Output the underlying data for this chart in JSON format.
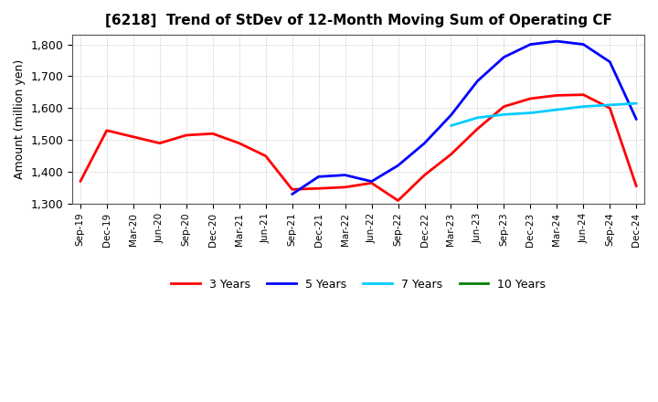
{
  "title": "[6218]  Trend of StDev of 12-Month Moving Sum of Operating CF",
  "ylabel": "Amount (million yen)",
  "background_color": "#ffffff",
  "grid_color": "#999999",
  "ylim": [
    1300,
    1830
  ],
  "yticks": [
    1300,
    1400,
    1500,
    1600,
    1700,
    1800
  ],
  "x_labels": [
    "Sep-19",
    "Dec-19",
    "Mar-20",
    "Jun-20",
    "Sep-20",
    "Dec-20",
    "Mar-21",
    "Jun-21",
    "Sep-21",
    "Dec-21",
    "Mar-22",
    "Jun-22",
    "Sep-22",
    "Dec-22",
    "Mar-23",
    "Jun-23",
    "Sep-23",
    "Dec-23",
    "Mar-24",
    "Jun-24",
    "Sep-24",
    "Dec-24"
  ],
  "series": {
    "3 Years": {
      "color": "#ff0000",
      "linewidth": 2.0,
      "data_x": [
        0,
        1,
        2,
        3,
        4,
        5,
        6,
        7,
        8,
        9,
        10,
        11,
        12,
        13,
        14,
        15,
        16,
        17,
        18,
        19,
        20,
        21
      ],
      "data_y": [
        1370,
        1530,
        1510,
        1490,
        1515,
        1520,
        1490,
        1450,
        1345,
        1348,
        1352,
        1365,
        1310,
        1390,
        1455,
        1535,
        1605,
        1630,
        1640,
        1642,
        1600,
        1355
      ]
    },
    "5 Years": {
      "color": "#0000ff",
      "linewidth": 2.0,
      "data_x": [
        8,
        9,
        10,
        11,
        12,
        13,
        14,
        15,
        16,
        17,
        18,
        19,
        20,
        21
      ],
      "data_y": [
        1330,
        1385,
        1390,
        1370,
        1420,
        1490,
        1578,
        1685,
        1760,
        1800,
        1810,
        1800,
        1745,
        1565
      ]
    },
    "7 Years": {
      "color": "#00ccff",
      "linewidth": 2.0,
      "data_x": [
        14,
        15,
        16,
        17,
        18,
        19,
        20,
        21
      ],
      "data_y": [
        1545,
        1570,
        1580,
        1585,
        1595,
        1605,
        1610,
        1615
      ]
    },
    "10 Years": {
      "color": "#008000",
      "linewidth": 2.0,
      "data_x": [],
      "data_y": []
    }
  },
  "legend_order": [
    "3 Years",
    "5 Years",
    "7 Years",
    "10 Years"
  ]
}
